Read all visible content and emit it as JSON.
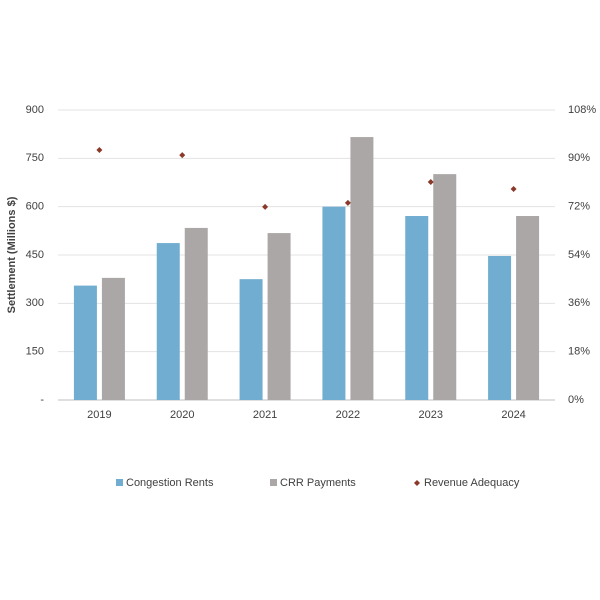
{
  "chart_data": {
    "type": "bar",
    "y_label": "Settlement (Millions  $)",
    "categories": [
      "2019",
      "2020",
      "2021",
      "2022",
      "2023",
      "2024"
    ],
    "series": [
      {
        "name": "Congestion Rents",
        "color": "#70add0",
        "values": [
          355,
          487,
          375,
          600,
          571,
          447
        ]
      },
      {
        "name": "CRR Payments",
        "color": "#aba7a7",
        "values": [
          379,
          534,
          518,
          816,
          701,
          571
        ]
      },
      {
        "name": "Revenue Adequacy",
        "color": "#8b3a2a",
        "type": "scatter",
        "axis": "y2",
        "values": [
          93.1,
          91.2,
          71.9,
          73.4,
          81.2,
          78.6
        ]
      }
    ],
    "ylim": [
      0,
      900
    ],
    "yticks": [
      {
        "value": 0,
        "label": "-"
      },
      150,
      300,
      450,
      600,
      750,
      900
    ],
    "y2lim": [
      0,
      108
    ],
    "y2ticks": [
      {
        "value": 0,
        "label": "0%"
      },
      {
        "value": 18,
        "label": "18%"
      },
      {
        "value": 36,
        "label": "36%"
      },
      {
        "value": 54,
        "label": "54%"
      },
      {
        "value": 72,
        "label": "72%"
      },
      {
        "value": 90,
        "label": "90%"
      },
      {
        "value": 108,
        "label": "108%"
      }
    ],
    "grid": true
  }
}
